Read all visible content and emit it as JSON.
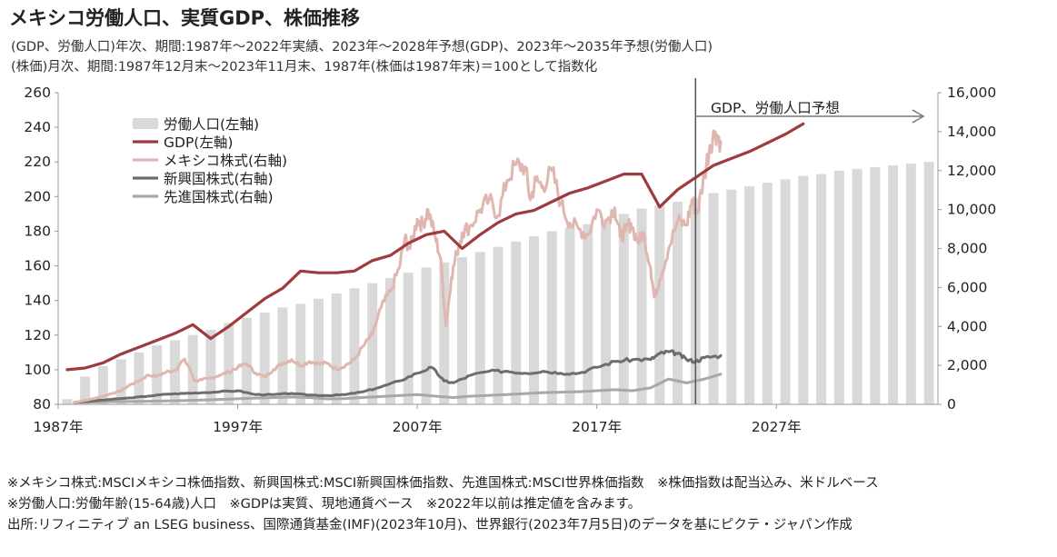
{
  "title": "メキシコ労働人口、実質GDP、株価推移",
  "subtitle_1": "(GDP、労働人口)年次、期間:1987年～2022年実績、2023年～2028年予想(GDP)、2023年～2035年予想(労働人口)",
  "subtitle_2": "(株価)月次、期間:1987年12月末～2023年11月末、1987年(株価は1987年末)＝100として指数化",
  "notes": [
    "※メキシコ株式:MSCIメキシコ株価指数、新興国株式:MSCI新興国株価指数、先進国株式:MSCI世界株価指数　※株価指数は配当込み、米ドルベース",
    "※労働人口:労働年齢(15-64歳)人口　※GDPは実質、現地通貨ベース　※2022年以前は推定値を含みます。",
    "出所:リフィニティブ an LSEG business、国際通貨基金(IMF)(2023年10月)、世界銀行(2023年7月5日)のデータを基にピクテ・ジャパン作成"
  ],
  "chart_data": {
    "type": "bar+line",
    "x_ticks": [
      "1987年",
      "1997年",
      "2007年",
      "2017年",
      "2027年"
    ],
    "y_left": {
      "lim": [
        80,
        260
      ],
      "ticks": [
        "80",
        "100",
        "120",
        "140",
        "160",
        "180",
        "200",
        "220",
        "240",
        "260"
      ]
    },
    "y_right": {
      "lim": [
        0,
        16000
      ],
      "ticks": [
        "0",
        "2,000",
        "4,000",
        "6,000",
        "8,000",
        "10,000",
        "12,000",
        "14,000",
        "16,000"
      ]
    },
    "forecast_label": "GDP、労働人口予想",
    "forecast_start_year": 2022.5,
    "legend": [
      "労働人口(左軸)",
      "GDP(左軸)",
      "メキシコ株式(右軸)",
      "新興国株式(右軸)",
      "先進国株式(右軸)"
    ],
    "colors": {
      "labor": "#d9d9d9",
      "gdp": "#9e3b3f",
      "mexico": "#e0b7b0",
      "emerging": "#6d6d6d",
      "developed": "#a8a8a8",
      "forecast_line": "#555555"
    },
    "labor_force": {
      "years": [
        1987,
        1988,
        1989,
        1990,
        1991,
        1992,
        1993,
        1994,
        1995,
        1996,
        1997,
        1998,
        1999,
        2000,
        2001,
        2002,
        2003,
        2004,
        2005,
        2006,
        2007,
        2008,
        2009,
        2010,
        2011,
        2012,
        2013,
        2014,
        2015,
        2016,
        2017,
        2018,
        2019,
        2020,
        2021,
        2022,
        2023,
        2024,
        2025,
        2026,
        2027,
        2028,
        2029,
        2030,
        2031,
        2032,
        2033,
        2034,
        2035
      ],
      "values": [
        83,
        96,
        102,
        106,
        110,
        114,
        117,
        120,
        123,
        127,
        130,
        133,
        136,
        138,
        141,
        144,
        147,
        150,
        153,
        156,
        159,
        162,
        165,
        168,
        171,
        174,
        177,
        180,
        182,
        184,
        187,
        190,
        193,
        195,
        197,
        199,
        202,
        204,
        206,
        208,
        210,
        212,
        213,
        215,
        216,
        217,
        218,
        219,
        220
      ]
    },
    "gdp": {
      "years": [
        1987,
        1988,
        1989,
        1990,
        1991,
        1992,
        1993,
        1994,
        1995,
        1996,
        1997,
        1998,
        1999,
        2000,
        2001,
        2002,
        2003,
        2004,
        2005,
        2006,
        2007,
        2008,
        2009,
        2010,
        2011,
        2012,
        2013,
        2014,
        2015,
        2016,
        2017,
        2018,
        2019,
        2020,
        2021,
        2022,
        2023,
        2024,
        2025,
        2026,
        2027,
        2028
      ],
      "values": [
        100,
        101,
        104,
        109,
        113,
        117,
        121,
        126,
        118,
        125,
        133,
        141,
        147,
        157,
        156,
        156,
        157,
        163,
        166,
        173,
        178,
        180,
        170,
        178,
        185,
        190,
        192,
        197,
        202,
        205,
        209,
        213,
        213,
        194,
        204,
        211,
        218,
        222,
        226,
        231,
        236,
        242
      ]
    },
    "mexico_equity": {
      "x": [
        1987.9,
        1988.5,
        1989,
        1989.5,
        1990,
        1990.5,
        1991,
        1991.5,
        1992,
        1992.5,
        1993,
        1993.5,
        1994,
        1994.3,
        1994.6,
        1995,
        1995.5,
        1996,
        1996.5,
        1997,
        1997.5,
        1998,
        1998.5,
        1999,
        1999.5,
        2000,
        2000.5,
        2001,
        2001.5,
        2002,
        2002.5,
        2003,
        2003.5,
        2004,
        2004.5,
        2005,
        2005.5,
        2006,
        2006.3,
        2006.6,
        2007,
        2007.3,
        2007.6,
        2008,
        2008.3,
        2008.6,
        2008.9,
        2009.2,
        2009.5,
        2010,
        2010.5,
        2011,
        2011.5,
        2012,
        2012.5,
        2013,
        2013.3,
        2013.6,
        2014,
        2014.5,
        2015,
        2015.5,
        2016,
        2016.5,
        2017,
        2017.5,
        2018,
        2018.3,
        2018.6,
        2018.9,
        2019.3,
        2019.6,
        2020,
        2020.2,
        2020.5,
        2021,
        2021.5,
        2022,
        2022.3,
        2022.6,
        2023,
        2023.3,
        2023.6,
        2023.9
      ],
      "values": [
        100,
        210,
        300,
        420,
        560,
        700,
        1000,
        1200,
        1500,
        1450,
        1650,
        1750,
        2300,
        1900,
        1200,
        1250,
        1350,
        1500,
        1650,
        1900,
        2100,
        1600,
        1400,
        1800,
        2100,
        2300,
        2000,
        2200,
        2100,
        2100,
        1800,
        2000,
        2300,
        3000,
        3600,
        5000,
        5800,
        7000,
        8500,
        8000,
        9500,
        9200,
        10000,
        8600,
        7500,
        4000,
        6500,
        7800,
        8800,
        9200,
        10000,
        10500,
        9700,
        11500,
        12300,
        12200,
        10500,
        11500,
        11200,
        12000,
        10300,
        9300,
        9000,
        8700,
        10000,
        9400,
        10100,
        8600,
        8900,
        9300,
        8300,
        8800,
        7000,
        5500,
        6400,
        8000,
        9400,
        9200,
        10500,
        9800,
        11800,
        13300,
        14000,
        13500
      ],
      "jitter_seed": 7
    },
    "emerging_equity": {
      "x": [
        1987.9,
        1989,
        1990,
        1991,
        1992,
        1993,
        1994,
        1995,
        1996,
        1997,
        1998,
        1999,
        2000,
        2001,
        2002,
        2003,
        2004,
        2005,
        2006,
        2007,
        2007.8,
        2008.5,
        2009,
        2010,
        2011,
        2012,
        2013,
        2014,
        2015,
        2016,
        2017,
        2018,
        2019,
        2020,
        2020.5,
        2021,
        2021.5,
        2022,
        2022.5,
        2023,
        2023.9
      ],
      "values": [
        100,
        180,
        260,
        330,
        420,
        520,
        560,
        600,
        650,
        700,
        500,
        500,
        560,
        480,
        450,
        500,
        650,
        900,
        1200,
        1600,
        1900,
        1200,
        1100,
        1500,
        1700,
        1700,
        1600,
        1700,
        1600,
        1600,
        1900,
        2200,
        2300,
        2300,
        2600,
        2700,
        2600,
        2300,
        2200,
        2400,
        2500
      ]
    },
    "developed_equity": {
      "x": [
        1987.9,
        1990,
        1992,
        1994,
        1996,
        1998,
        2000,
        2001,
        2002,
        2003,
        2005,
        2007,
        2008,
        2009,
        2010,
        2012,
        2014,
        2016,
        2018,
        2019,
        2020,
        2021,
        2022,
        2023,
        2023.9
      ],
      "values": [
        100,
        140,
        160,
        190,
        250,
        320,
        380,
        350,
        280,
        300,
        400,
        500,
        420,
        350,
        420,
        500,
        600,
        650,
        750,
        700,
        850,
        1300,
        1100,
        1300,
        1550
      ]
    }
  }
}
